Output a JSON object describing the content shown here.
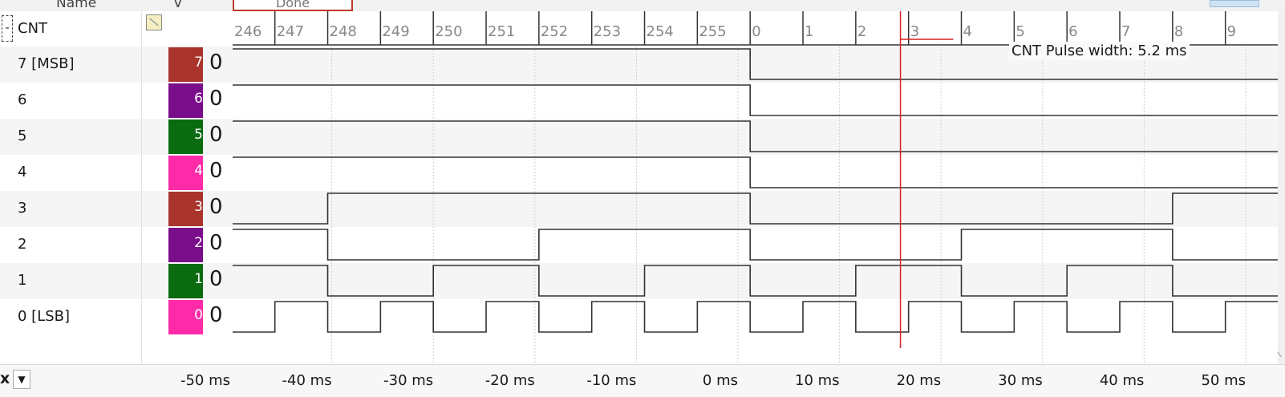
{
  "header": {
    "name_col": "Name",
    "value_col": "V",
    "top_button": "Done"
  },
  "group": {
    "toggle": "-",
    "label": "CNT"
  },
  "signals": [
    {
      "label": "7 [MSB]",
      "color": "#a8342b",
      "num": "7",
      "value": "0"
    },
    {
      "label": "6",
      "color": "#7a0d8a",
      "num": "6",
      "value": "0"
    },
    {
      "label": "5",
      "color": "#0a6b10",
      "num": "5",
      "value": "0"
    },
    {
      "label": "4",
      "color": "#ff2aa8",
      "num": "4",
      "value": "0"
    },
    {
      "label": "3",
      "color": "#a8342b",
      "num": "3",
      "value": "0"
    },
    {
      "label": "2",
      "color": "#7a0d8a",
      "num": "2",
      "value": "0"
    },
    {
      "label": "1",
      "color": "#0a6b10",
      "num": "1",
      "value": "0"
    },
    {
      "label": "0 [LSB]",
      "color": "#ff2aa8",
      "num": "0",
      "value": "0"
    }
  ],
  "bus_values": [
    "246",
    "247",
    "248",
    "249",
    "250",
    "251",
    "252",
    "253",
    "254",
    "255",
    "0",
    "1",
    "2",
    "3",
    "4",
    "5",
    "6",
    "7",
    "8",
    "9"
  ],
  "count_start": 246,
  "count_first_edge_ms": -45.6,
  "count_period_ms": 5.2,
  "cursor": {
    "time_ms": 16.0,
    "label": "CNT Pulse width: 5.2 ms",
    "measured_ms": 5.2,
    "color": "#d62020"
  },
  "time_axis": {
    "min_ms": -50.0,
    "max_ms": 50.0,
    "labels": [
      "-50 ms",
      "-40 ms",
      "-30 ms",
      "-20 ms",
      "-10 ms",
      "0 ms",
      "10 ms",
      "20 ms",
      "30 ms",
      "40 ms",
      "50 ms"
    ],
    "ticks_ms": [
      -50,
      -40,
      -30,
      -20,
      -10,
      0,
      10,
      20,
      30,
      40,
      50
    ]
  },
  "zoom": {
    "symbol": "x",
    "arrow": "▼"
  }
}
